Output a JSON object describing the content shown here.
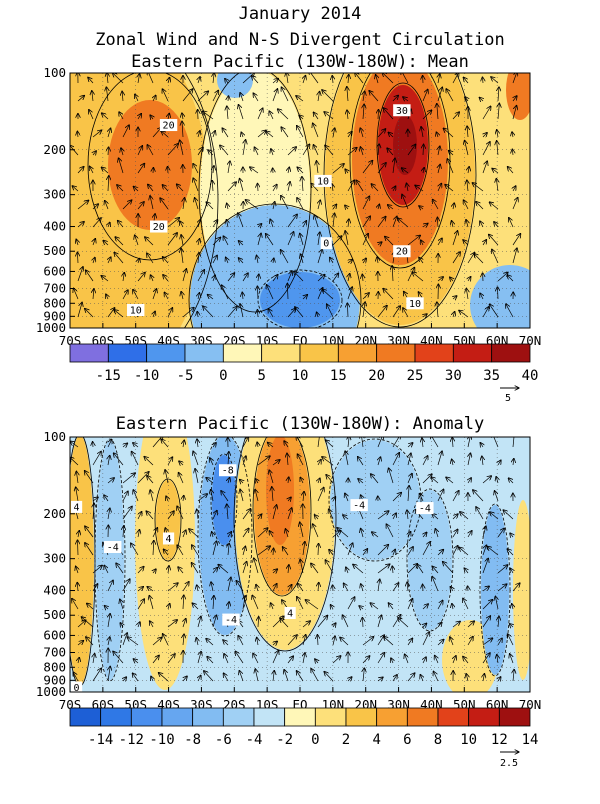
{
  "titles": {
    "line1": "January 2014",
    "line2": "Zonal Wind and N-S Divergent Circulation",
    "mean": "Eastern Pacific (130W-180W): Mean",
    "anom": "Eastern Pacific (130W-180W): Anomaly"
  },
  "chart_data": [
    {
      "type": "heatmap",
      "name": "mean",
      "title": "Eastern Pacific (130W-180W): Mean",
      "x_ticks": [
        "70S",
        "60S",
        "50S",
        "40S",
        "30S",
        "20S",
        "10S",
        "EQ",
        "10N",
        "20N",
        "30N",
        "40N",
        "50N",
        "60N",
        "70N"
      ],
      "y_ticks": [
        "100",
        "200",
        "300",
        "400",
        "500",
        "600",
        "700",
        "800",
        "900",
        "1000"
      ],
      "y_levels": [
        100,
        200,
        300,
        400,
        500,
        600,
        700,
        800,
        900,
        1000
      ],
      "y_scale": "log",
      "colorbar_labels": [
        "-15",
        "-10",
        "-5",
        "0",
        "5",
        "10",
        "15",
        "20",
        "25",
        "30",
        "35",
        "40"
      ],
      "colorbar_colors": [
        "#7f6fe0",
        "#2f6fe8",
        "#4f96ee",
        "#86bff2",
        "#fff7b8",
        "#fde07a",
        "#f9c448",
        "#f7a032",
        "#f07a22",
        "#e2421a",
        "#c41d14",
        "#9e1010"
      ],
      "contour_labels": [
        {
          "text": "20",
          "lat": -40,
          "p": 160
        },
        {
          "text": "20",
          "lat": -43,
          "p": 400
        },
        {
          "text": "10",
          "lat": -50,
          "p": 850
        },
        {
          "text": "10",
          "lat": 7,
          "p": 265
        },
        {
          "text": "0",
          "lat": 8,
          "p": 465
        },
        {
          "text": "30",
          "lat": 31,
          "p": 140
        },
        {
          "text": "20",
          "lat": 31,
          "p": 500
        },
        {
          "text": "10",
          "lat": 35,
          "p": 800
        }
      ],
      "vector_reference": "5"
    },
    {
      "type": "heatmap",
      "name": "anomaly",
      "title": "Eastern Pacific (130W-180W): Anomaly",
      "x_ticks": [
        "70S",
        "60S",
        "50S",
        "40S",
        "30S",
        "20S",
        "10S",
        "EQ",
        "10N",
        "20N",
        "30N",
        "40N",
        "50N",
        "60N",
        "70N"
      ],
      "y_ticks": [
        "100",
        "200",
        "300",
        "400",
        "500",
        "600",
        "700",
        "800",
        "900",
        "1000"
      ],
      "y_levels": [
        100,
        200,
        300,
        400,
        500,
        600,
        700,
        800,
        900,
        1000
      ],
      "y_scale": "log",
      "colorbar_labels": [
        "-14",
        "-12",
        "-10",
        "-8",
        "-6",
        "-4",
        "-2",
        "0",
        "2",
        "4",
        "6",
        "8",
        "10",
        "12",
        "14"
      ],
      "colorbar_colors": [
        "#1d5fd6",
        "#2f78e6",
        "#4a8fee",
        "#66a6f0",
        "#82bcf2",
        "#a0d0f4",
        "#c2e4f6",
        "#fff7b8",
        "#fde07a",
        "#f9c448",
        "#f7a032",
        "#f07a22",
        "#e2421a",
        "#c41d14",
        "#9e1010"
      ],
      "contour_labels": [
        {
          "text": "-8",
          "lat": -22,
          "p": 135
        },
        {
          "text": "4",
          "lat": -68,
          "p": 188
        },
        {
          "text": "4",
          "lat": -40,
          "p": 250
        },
        {
          "text": "-4",
          "lat": -57,
          "p": 270
        },
        {
          "text": "-4",
          "lat": -21,
          "p": 520
        },
        {
          "text": "4",
          "lat": -3,
          "p": 490
        },
        {
          "text": "-4",
          "lat": 18,
          "p": 185
        },
        {
          "text": "-4",
          "lat": 38,
          "p": 190
        },
        {
          "text": "0",
          "lat": -68,
          "p": 960
        }
      ],
      "vector_reference": "2.5"
    }
  ]
}
